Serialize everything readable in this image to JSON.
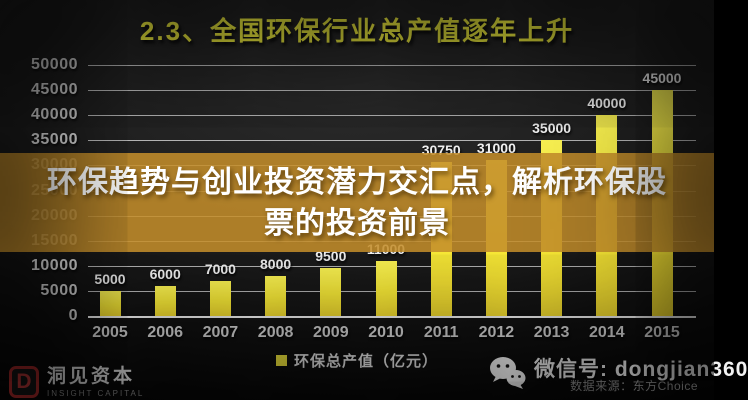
{
  "title": "2.3、全国环保行业总产值逐年上升",
  "overlay_banner": {
    "full_text": "环保趋势与创业投资潜力交汇点，解析环保股票的投资前景",
    "line1": "环保趋势与创业投资潜力交汇点，解析环保股",
    "line2": "票的投资前景",
    "bg_color": "#c38d2b",
    "text_color": "#ffffff"
  },
  "chart_data": {
    "type": "bar",
    "title": "2.3、全国环保行业总产值逐年上升",
    "categories": [
      "2005",
      "2006",
      "2007",
      "2008",
      "2009",
      "2010",
      "2011",
      "2012",
      "2013",
      "2014",
      "2015"
    ],
    "values": [
      5000,
      6000,
      7000,
      8000,
      9500,
      11000,
      30750,
      31000,
      35000,
      40000,
      45000
    ],
    "ylim": [
      0,
      50000
    ],
    "ytick_interval": 5000,
    "yticks": [
      0,
      5000,
      10000,
      15000,
      20000,
      25000,
      30000,
      35000,
      40000,
      45000,
      50000
    ],
    "xlabel": "",
    "ylabel": "",
    "grid": true,
    "legend": "环保总产值（亿元）",
    "legend_position": "bottom",
    "bar_color": "#f6e836",
    "title_color": "#e9e73d",
    "background": "#1b1b1b"
  },
  "footer": {
    "logo_letter": "D",
    "logo_name": "洞见资本",
    "logo_subtitle": "INSIGHT CAPITAL",
    "wechat_label": "微信号: dongjian360",
    "data_source": "数据来源：东方Choice"
  }
}
